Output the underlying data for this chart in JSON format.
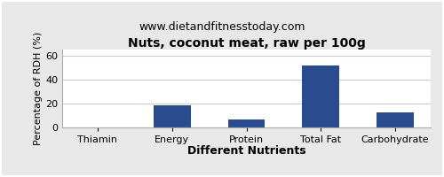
{
  "title": "Nuts, coconut meat, raw per 100g",
  "subtitle": "www.dietandfitnesstoday.com",
  "xlabel": "Different Nutrients",
  "ylabel": "Percentage of RDH (%)",
  "categories": [
    "Thiamin",
    "Energy",
    "Protein",
    "Total Fat",
    "Carbohydrate"
  ],
  "values": [
    0.3,
    18.5,
    6.5,
    52.0,
    12.5
  ],
  "bar_color": "#2a4b8d",
  "ylim": [
    0,
    65
  ],
  "yticks": [
    0,
    20,
    40,
    60
  ],
  "background_color": "#e8e8e8",
  "plot_bg_color": "#ffffff",
  "title_fontsize": 10,
  "subtitle_fontsize": 9,
  "ylabel_fontsize": 8,
  "tick_fontsize": 8,
  "xlabel_fontsize": 9,
  "xlabel_fontweight": "bold",
  "title_fontweight": "bold",
  "grid_color": "#cccccc",
  "border_color": "#aaaaaa"
}
